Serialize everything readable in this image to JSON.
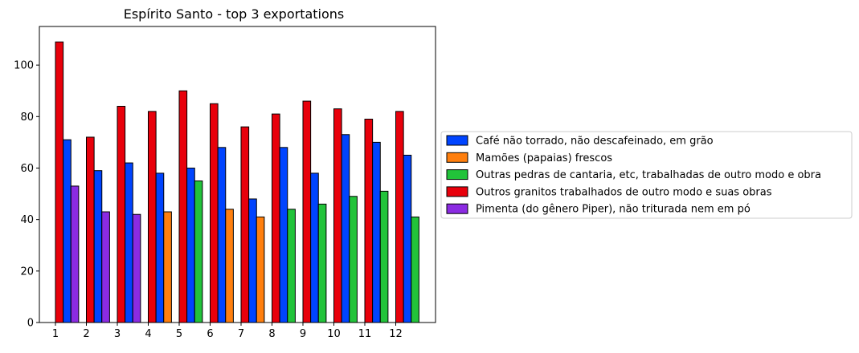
{
  "chart_data": {
    "type": "bar",
    "title": "Espírito Santo - top 3 exportations",
    "xlabel": "",
    "ylabel": "",
    "categories": [
      "1",
      "2",
      "3",
      "4",
      "5",
      "6",
      "7",
      "8",
      "9",
      "10",
      "11",
      "12"
    ],
    "ylim": [
      0,
      115
    ],
    "yticks": [
      0,
      20,
      40,
      60,
      80,
      100
    ],
    "grid": false,
    "legend_position": "right-outside",
    "series": [
      {
        "name": "Café não torrado, não descafeinado, em grão",
        "color": "#0044ff",
        "values": [
          71,
          59,
          62,
          58,
          60,
          68,
          48,
          68,
          58,
          73,
          70,
          65
        ]
      },
      {
        "name": "Mamões (papaias) frescos",
        "color": "#ff7f0e",
        "values": [
          null,
          null,
          null,
          43,
          null,
          44,
          41,
          null,
          null,
          null,
          null,
          null
        ]
      },
      {
        "name": "Outras pedras de cantaria, etc, trabalhadas de outro modo e obra",
        "color": "#22c33a",
        "values": [
          null,
          null,
          null,
          null,
          55,
          null,
          null,
          44,
          46,
          49,
          51,
          41
        ]
      },
      {
        "name": "Outros granitos trabalhados de outro modo e suas obras",
        "color": "#e8000b",
        "values": [
          109,
          72,
          84,
          82,
          90,
          85,
          76,
          81,
          86,
          83,
          79,
          82
        ]
      },
      {
        "name": "Pimenta (do gênero Piper), não triturada nem em pó",
        "color": "#8b2be2",
        "values": [
          53,
          43,
          42,
          null,
          null,
          null,
          null,
          null,
          null,
          null,
          null,
          null
        ]
      }
    ]
  }
}
